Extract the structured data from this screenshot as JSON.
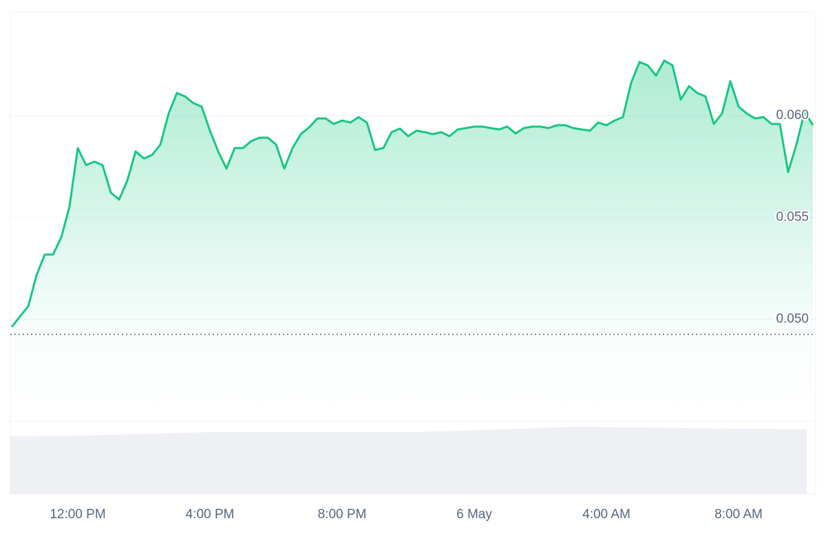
{
  "chart_data": {
    "type": "line",
    "values": [
      0.04963,
      0.05014,
      0.05064,
      0.05216,
      0.05318,
      0.05318,
      0.05402,
      0.05554,
      0.05841,
      0.05757,
      0.05774,
      0.05757,
      0.05622,
      0.05588,
      0.05682,
      0.05824,
      0.0579,
      0.05807,
      0.05858,
      0.0601,
      0.06111,
      0.06094,
      0.06061,
      0.06044,
      0.05926,
      0.05824,
      0.0574,
      0.05841,
      0.05841,
      0.05875,
      0.05892,
      0.05892,
      0.05858,
      0.0574,
      0.05841,
      0.05909,
      0.05942,
      0.05986,
      0.05986,
      0.05959,
      0.05976,
      0.05966,
      0.05993,
      0.05966,
      0.05831,
      0.05841,
      0.05919,
      0.05936,
      0.05899,
      0.05926,
      0.05919,
      0.05909,
      0.05919,
      0.05899,
      0.05932,
      0.05939,
      0.05946,
      0.05946,
      0.05939,
      0.05932,
      0.05946,
      0.05912,
      0.05939,
      0.05946,
      0.05946,
      0.05939,
      0.05953,
      0.05953,
      0.05939,
      0.05932,
      0.05926,
      0.05966,
      0.05953,
      0.05976,
      0.05993,
      0.06162,
      0.06263,
      0.06247,
      0.06196,
      0.0627,
      0.06247,
      0.06078,
      0.06145,
      0.06111,
      0.06094,
      0.05959,
      0.0601,
      0.06169,
      0.06044,
      0.0601,
      0.05986,
      0.05993,
      0.05959,
      0.05959,
      0.05723,
      0.05858,
      0.0602,
      0.05953
    ],
    "color": "#16c784",
    "xlim": [
      0,
      97
    ],
    "xticks": [
      {
        "value": 8,
        "label": "12:00 PM"
      },
      {
        "value": 24,
        "label": "4:00 PM"
      },
      {
        "value": 40,
        "label": "8:00 PM"
      },
      {
        "value": 56,
        "label": "6 May"
      },
      {
        "value": 72,
        "label": "4:00 AM"
      },
      {
        "value": 88,
        "label": "8:00 AM"
      }
    ],
    "ylim": [
      0.045,
      0.065
    ],
    "yticks": [
      {
        "value": 0.05,
        "label": "0.050"
      },
      {
        "value": 0.055,
        "label": "0.055"
      },
      {
        "value": 0.06,
        "label": "0.060"
      }
    ],
    "reference_line": 0.04926,
    "grid": true
  }
}
